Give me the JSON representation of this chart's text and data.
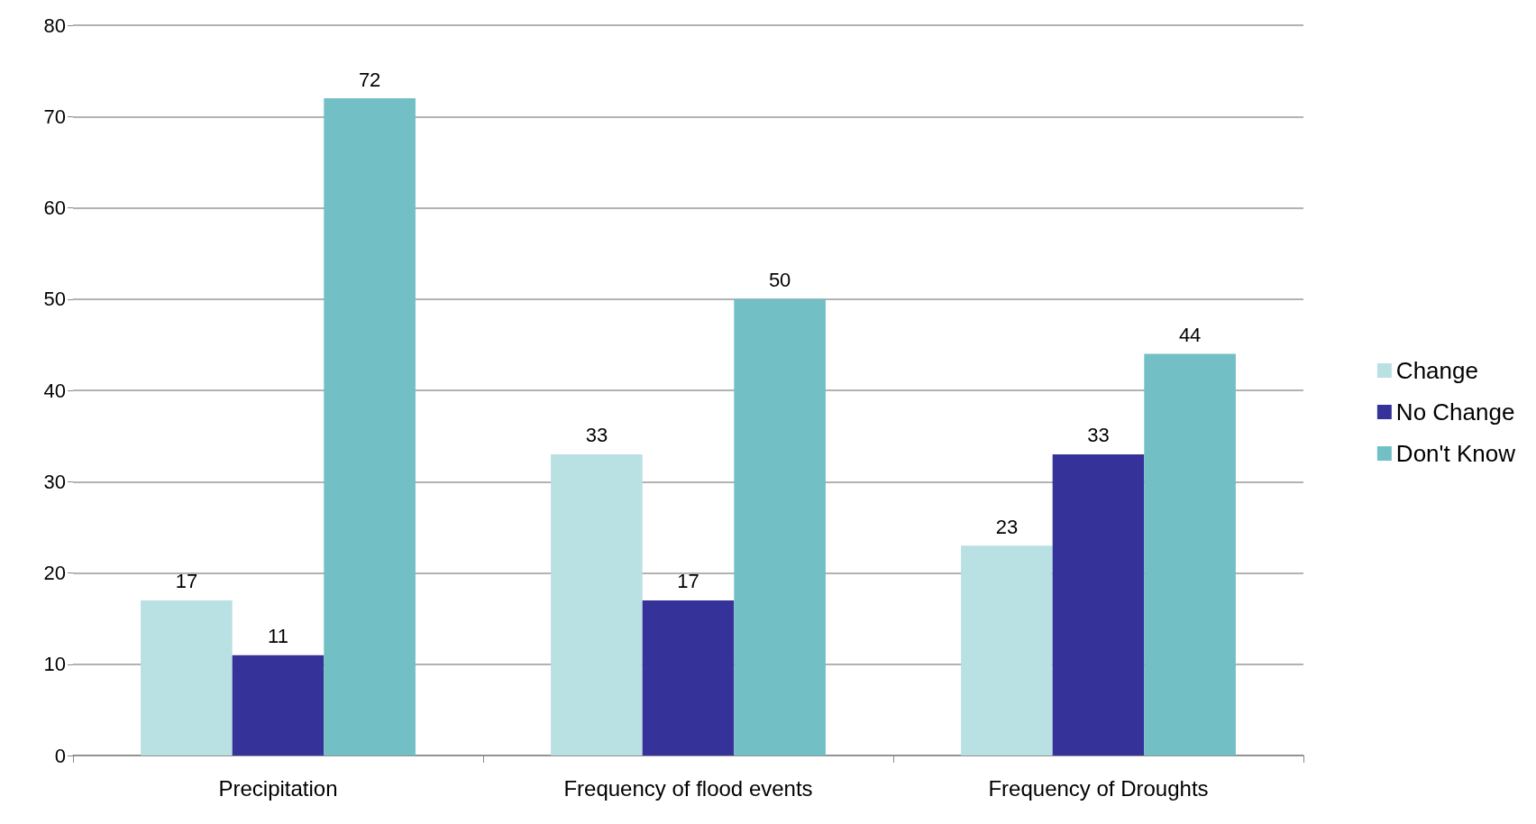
{
  "chart_data": {
    "type": "bar",
    "categories": [
      "Precipitation",
      "Frequency of flood events",
      "Frequency of Droughts"
    ],
    "series": [
      {
        "name": "Change",
        "color": "#b9e0e3",
        "values": [
          17,
          33,
          23
        ]
      },
      {
        "name": "No Change",
        "color": "#353399",
        "values": [
          11,
          17,
          33
        ]
      },
      {
        "name": "Don't Know",
        "color": "#72bfc5",
        "values": [
          72,
          50,
          44
        ]
      }
    ],
    "ylim": [
      0,
      80
    ],
    "yticks": [
      0,
      10,
      20,
      30,
      40,
      50,
      60,
      70,
      80
    ],
    "grid": "y",
    "legend": "right",
    "data_labels": true
  }
}
